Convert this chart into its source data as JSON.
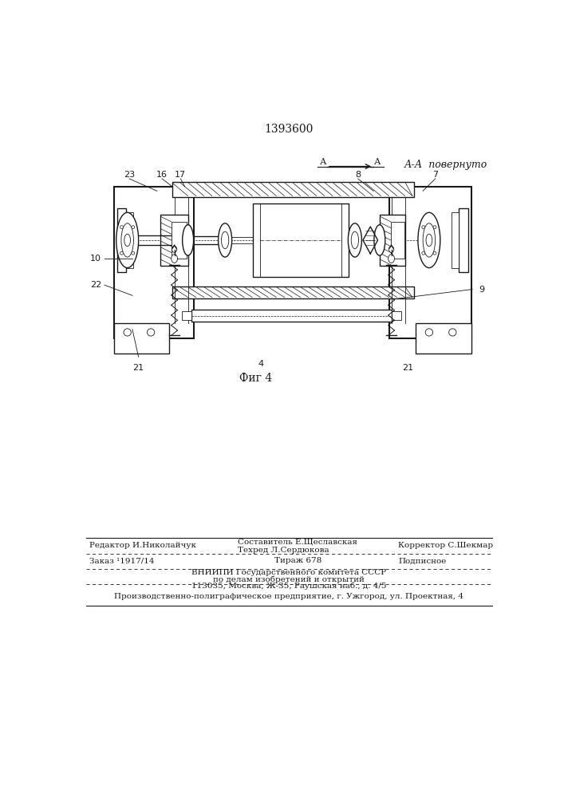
{
  "patent_number": "1393600",
  "fig_label": "Фиг 4",
  "section_label": "А-А  повернуто",
  "background_color": "#ffffff",
  "text_color": "#1a1a1a",
  "editor_line": "Редактор И.Николайчук",
  "compositor_line1": "Составитель Е.Щеславская",
  "compositor_line2": "Техред Л.Сердюкова",
  "corrector_line": "Корректор С.Шекмар",
  "order_line": "Заказ ¹1917/14",
  "tirazh_line": "Тираж 678",
  "podpisnoe_line": "Подписное",
  "vniishi_line1": "ВНИИПИ Государственного комитета СССР",
  "vniishi_line2": "по делам изобретений и открытий",
  "vniishi_line3": "113035, Москва, Ж-35, Раушская наб., д. 4/5",
  "factory_line": "Производственно-полиграфическое предприятие, г. Ужгород, ул. Проектная, 4"
}
